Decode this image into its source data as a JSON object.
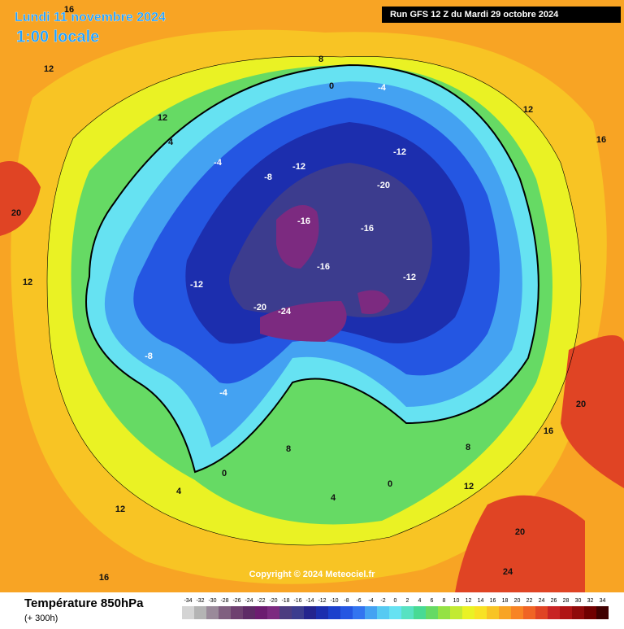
{
  "header": {
    "date": "Lundi 11 novembre 2024",
    "time": "1:00 locale",
    "run": "Run GFS 12 Z du Mardi 29 octobre 2024"
  },
  "copyright": "Copyright © 2024 Meteociel.fr",
  "footer": {
    "title": "Température 850hPa",
    "lead": "(+ 300h)"
  },
  "scale": {
    "values": [
      -34,
      -32,
      -30,
      -28,
      -26,
      -24,
      -22,
      -20,
      -18,
      -16,
      -14,
      -12,
      -10,
      -8,
      -6,
      -4,
      -2,
      0,
      2,
      4,
      6,
      8,
      10,
      12,
      14,
      16,
      18,
      20,
      22,
      24,
      26,
      28,
      30,
      32,
      34
    ],
    "colors": [
      "#d4d4d4",
      "#b4b4b4",
      "#9a8a9a",
      "#806080",
      "#6e4070",
      "#5e2a66",
      "#6c1c70",
      "#7c2a80",
      "#4c3c80",
      "#3c3c8e",
      "#24248e",
      "#1c2eae",
      "#1c40cc",
      "#2456e2",
      "#3274f0",
      "#44a2f2",
      "#56caf2",
      "#66e2f2",
      "#58e2c2",
      "#48da94",
      "#66da64",
      "#94e244",
      "#c2ea32",
      "#eaf224",
      "#f8e224",
      "#f8c424",
      "#f8a424",
      "#f88424",
      "#f06424",
      "#e04424",
      "#c82424",
      "#b01414",
      "#900a0a",
      "#700000",
      "#400000"
    ]
  },
  "map": {
    "labels": [
      "16",
      "12",
      "16",
      "12",
      "12",
      "8",
      "4",
      "0",
      "-4",
      "-4",
      "-8",
      "-12",
      "-16",
      "-16",
      "-16",
      "-12",
      "-12",
      "-20",
      "-12",
      "-8",
      "-4",
      "0",
      "4",
      "8",
      "12",
      "16",
      "20",
      "24",
      "20",
      "12",
      "-24",
      "-20",
      "8",
      "4",
      "0",
      "12",
      "16",
      "20"
    ]
  }
}
